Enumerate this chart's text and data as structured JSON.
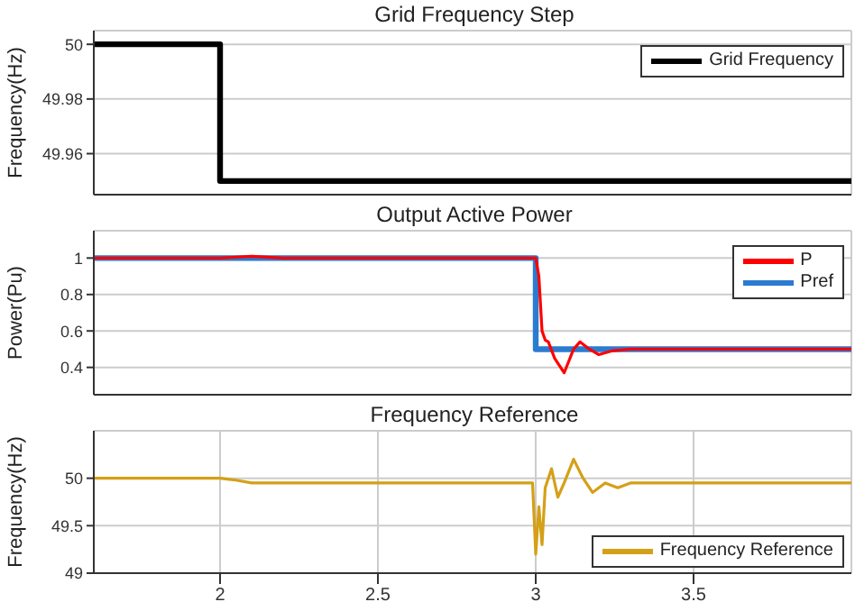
{
  "chart_data": [
    {
      "type": "line",
      "title": "Grid Frequency Step",
      "ylabel": "Frequency(Hz)",
      "xlim": [
        1.6,
        4
      ],
      "xticks": [
        2,
        2.5,
        3,
        3.5
      ],
      "ylim": [
        49.945,
        50.005
      ],
      "yticks": [
        49.96,
        49.98,
        50
      ],
      "grid": true,
      "legend": "top right",
      "tick_labels": "y",
      "series": [
        {
          "name": "Grid Frequency",
          "type": "step",
          "color": "#000000",
          "x": [
            1.6,
            2,
            4
          ],
          "values": [
            50,
            49.95,
            49.95
          ]
        }
      ]
    },
    {
      "type": "line",
      "title": "Output Active Power",
      "ylabel": "Power(Pu)",
      "xlim": [
        1.6,
        4
      ],
      "xticks": [
        2,
        2.5,
        3,
        3.5
      ],
      "ylim": [
        0.25,
        1.15
      ],
      "yticks": [
        0.4,
        0.6,
        0.8,
        1
      ],
      "grid": true,
      "legend": "top right",
      "tick_labels": "y",
      "series": [
        {
          "name": "P",
          "type": "line",
          "color": "#ff0000",
          "x": [
            1.6,
            1.8,
            2.0,
            2.1,
            2.2,
            2.3,
            2.5,
            3.0,
            3.01,
            3.02,
            3.03,
            3.04,
            3.06,
            3.09,
            3.12,
            3.14,
            3.17,
            3.2,
            3.24,
            3.3,
            4
          ],
          "values": [
            1,
            1,
            1,
            1.01,
            1,
            1,
            1,
            1,
            0.9,
            0.6,
            0.55,
            0.54,
            0.45,
            0.37,
            0.5,
            0.54,
            0.5,
            0.47,
            0.49,
            0.5,
            0.5
          ]
        },
        {
          "name": "Pref",
          "type": "step",
          "color": "#2b7bd0",
          "x": [
            1.6,
            3,
            4
          ],
          "values": [
            1,
            0.5,
            0.5
          ]
        }
      ]
    },
    {
      "type": "line",
      "title": "Frequency Reference",
      "ylabel": "Frequency(Hz)",
      "xlim": [
        1.6,
        4
      ],
      "xticks": [
        2,
        2.5,
        3,
        3.5
      ],
      "ylim": [
        49,
        50.5
      ],
      "yticks": [
        49,
        49.5,
        50
      ],
      "grid": true,
      "legend": "bottom right",
      "series": [
        {
          "name": "Frequency Reference",
          "type": "line",
          "color": "#d4a017",
          "x": [
            1.6,
            2.0,
            2.05,
            2.1,
            2.5,
            2.99,
            3.0,
            3.01,
            3.02,
            3.03,
            3.05,
            3.07,
            3.09,
            3.12,
            3.15,
            3.18,
            3.22,
            3.26,
            3.3,
            3.5,
            4
          ],
          "values": [
            50,
            50,
            49.98,
            49.95,
            49.95,
            49.95,
            49.2,
            49.7,
            49.3,
            49.9,
            50.1,
            49.8,
            49.95,
            50.2,
            50.0,
            49.85,
            49.95,
            49.9,
            49.95,
            49.95,
            49.95
          ]
        }
      ]
    }
  ]
}
